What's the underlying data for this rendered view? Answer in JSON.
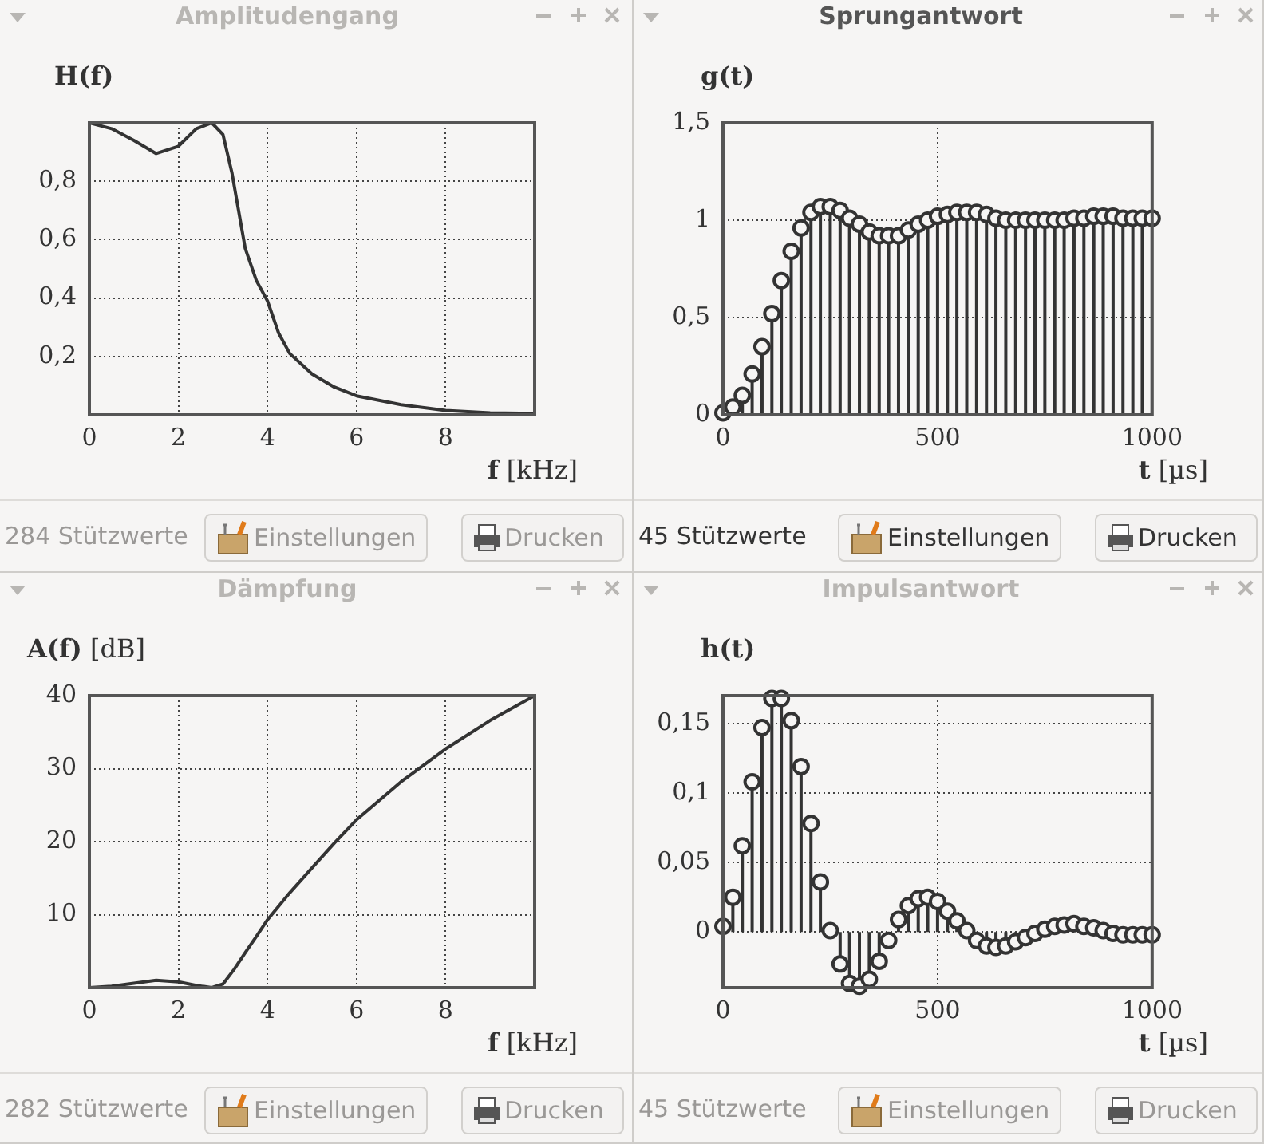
{
  "chart_data": [
    {
      "type": "line",
      "title": "Amplitudengang",
      "xlabel": "f [kHz]",
      "ylabel": "H(f)",
      "color": "#333333",
      "marker": "none",
      "grid": true,
      "x": [
        0,
        0.5,
        1,
        1.5,
        2,
        2.4,
        2.75,
        3,
        3.2,
        3.5,
        3.75,
        4,
        4.25,
        4.5,
        5,
        5.5,
        6,
        7,
        8,
        9,
        10
      ],
      "values": [
        1,
        0.98,
        0.94,
        0.895,
        0.92,
        0.98,
        1,
        0.96,
        0.83,
        0.57,
        0.46,
        0.39,
        0.28,
        0.21,
        0.14,
        0.095,
        0.065,
        0.035,
        0.015,
        0.007,
        0.005
      ],
      "xlim": [
        0,
        10
      ],
      "xticks": [
        0,
        2,
        4,
        6,
        8
      ],
      "ylim": [
        0,
        1
      ],
      "yticks": [
        {
          "value": 0.2,
          "label": "0,2"
        },
        {
          "value": 0.4,
          "label": "0,4"
        },
        {
          "value": 0.6,
          "label": "0,6"
        },
        {
          "value": 0.8,
          "label": "0,8"
        }
      ],
      "annotations": [
        "284 Stützwerte",
        "Einstellungen",
        "Drucken"
      ]
    },
    {
      "type": "lollipop",
      "title": "Sprungantwort",
      "xlabel": "t [µs]",
      "ylabel": "g(t)",
      "color": "#333333",
      "marker": "circle",
      "grid": true,
      "x": [
        0,
        23,
        45,
        68,
        91,
        114,
        136,
        159,
        182,
        205,
        227,
        250,
        273,
        295,
        318,
        341,
        364,
        386,
        409,
        432,
        455,
        477,
        500,
        523,
        545,
        568,
        591,
        614,
        636,
        659,
        682,
        705,
        727,
        750,
        773,
        795,
        818,
        841,
        864,
        886,
        909,
        932,
        955,
        977,
        1000
      ],
      "values": [
        0.01,
        0.04,
        0.1,
        0.21,
        0.35,
        0.52,
        0.69,
        0.84,
        0.96,
        1.04,
        1.07,
        1.07,
        1.05,
        1.01,
        0.98,
        0.94,
        0.92,
        0.92,
        0.92,
        0.95,
        0.98,
        1,
        1.02,
        1.03,
        1.04,
        1.04,
        1.04,
        1.03,
        1.01,
        1,
        1,
        1,
        1,
        1,
        1,
        1,
        1.01,
        1.01,
        1.02,
        1.02,
        1.02,
        1.01,
        1.01,
        1.01,
        1.01
      ],
      "xlim": [
        0,
        1000
      ],
      "xticks": [
        0,
        500,
        1000
      ],
      "ylim": [
        0,
        1.5
      ],
      "yticks": [
        0,
        {
          "value": 0.5,
          "label": "0,5"
        },
        1,
        {
          "value": 1.5,
          "label": "1,5"
        }
      ],
      "annotations": [
        "45 Stützwerte",
        "Einstellungen",
        "Drucken"
      ]
    },
    {
      "type": "line",
      "title": "Dämpfung",
      "xlabel": "f [kHz]",
      "ylabel": "A(f) [dB]",
      "color": "#333333",
      "marker": "none",
      "grid": true,
      "x": [
        0,
        0.5,
        1,
        1.5,
        2,
        2.4,
        2.75,
        3,
        3.25,
        3.5,
        3.75,
        4,
        4.5,
        5,
        5.5,
        6,
        7,
        8,
        9,
        10
      ],
      "values": [
        0,
        0.2,
        0.6,
        1,
        0.8,
        0.3,
        0,
        0.5,
        2.5,
        4.8,
        7,
        9.3,
        13,
        16.4,
        19.8,
        23,
        28.2,
        32.7,
        36.6,
        40
      ],
      "xlim": [
        0,
        10
      ],
      "xticks": [
        0,
        2,
        4,
        6,
        8
      ],
      "ylim": [
        0,
        40
      ],
      "yticks": [
        10,
        20,
        30,
        40
      ],
      "annotations": [
        "282 Stützwerte",
        "Einstellungen",
        "Drucken"
      ]
    },
    {
      "type": "lollipop",
      "title": "Impulsantwort",
      "xlabel": "t [µs]",
      "ylabel": "h(t)",
      "color": "#333333",
      "marker": "circle",
      "grid": true,
      "x": [
        0,
        23,
        45,
        68,
        91,
        114,
        136,
        159,
        182,
        205,
        227,
        250,
        273,
        295,
        318,
        341,
        364,
        386,
        409,
        432,
        455,
        477,
        500,
        523,
        545,
        568,
        591,
        614,
        636,
        659,
        682,
        705,
        727,
        750,
        773,
        795,
        818,
        841,
        864,
        886,
        909,
        932,
        955,
        977,
        1000
      ],
      "values": [
        0.004,
        0.025,
        0.062,
        0.108,
        0.147,
        0.168,
        0.168,
        0.152,
        0.119,
        0.078,
        0.036,
        0.001,
        -0.023,
        -0.037,
        -0.039,
        -0.034,
        -0.021,
        -0.006,
        0.009,
        0.019,
        0.024,
        0.025,
        0.022,
        0.015,
        0.008,
        0.001,
        -0.006,
        -0.01,
        -0.011,
        -0.01,
        -0.007,
        -0.004,
        -0.001,
        0.002,
        0.004,
        0.005,
        0.006,
        0.004,
        0.003,
        0.001,
        -0.001,
        -0.002,
        -0.002,
        -0.002,
        -0.002
      ],
      "xlim": [
        0,
        1000
      ],
      "xticks": [
        0,
        500,
        1000
      ],
      "ylim": [
        -0.04,
        0.17
      ],
      "yticks": [
        0,
        {
          "value": 0.05,
          "label": "0,05"
        },
        {
          "value": 0.1,
          "label": "0,1"
        },
        {
          "value": 0.15,
          "label": "0,15"
        }
      ],
      "annotations": [
        "45 Stützwerte",
        "Einstellungen",
        "Drucken"
      ]
    }
  ]
}
